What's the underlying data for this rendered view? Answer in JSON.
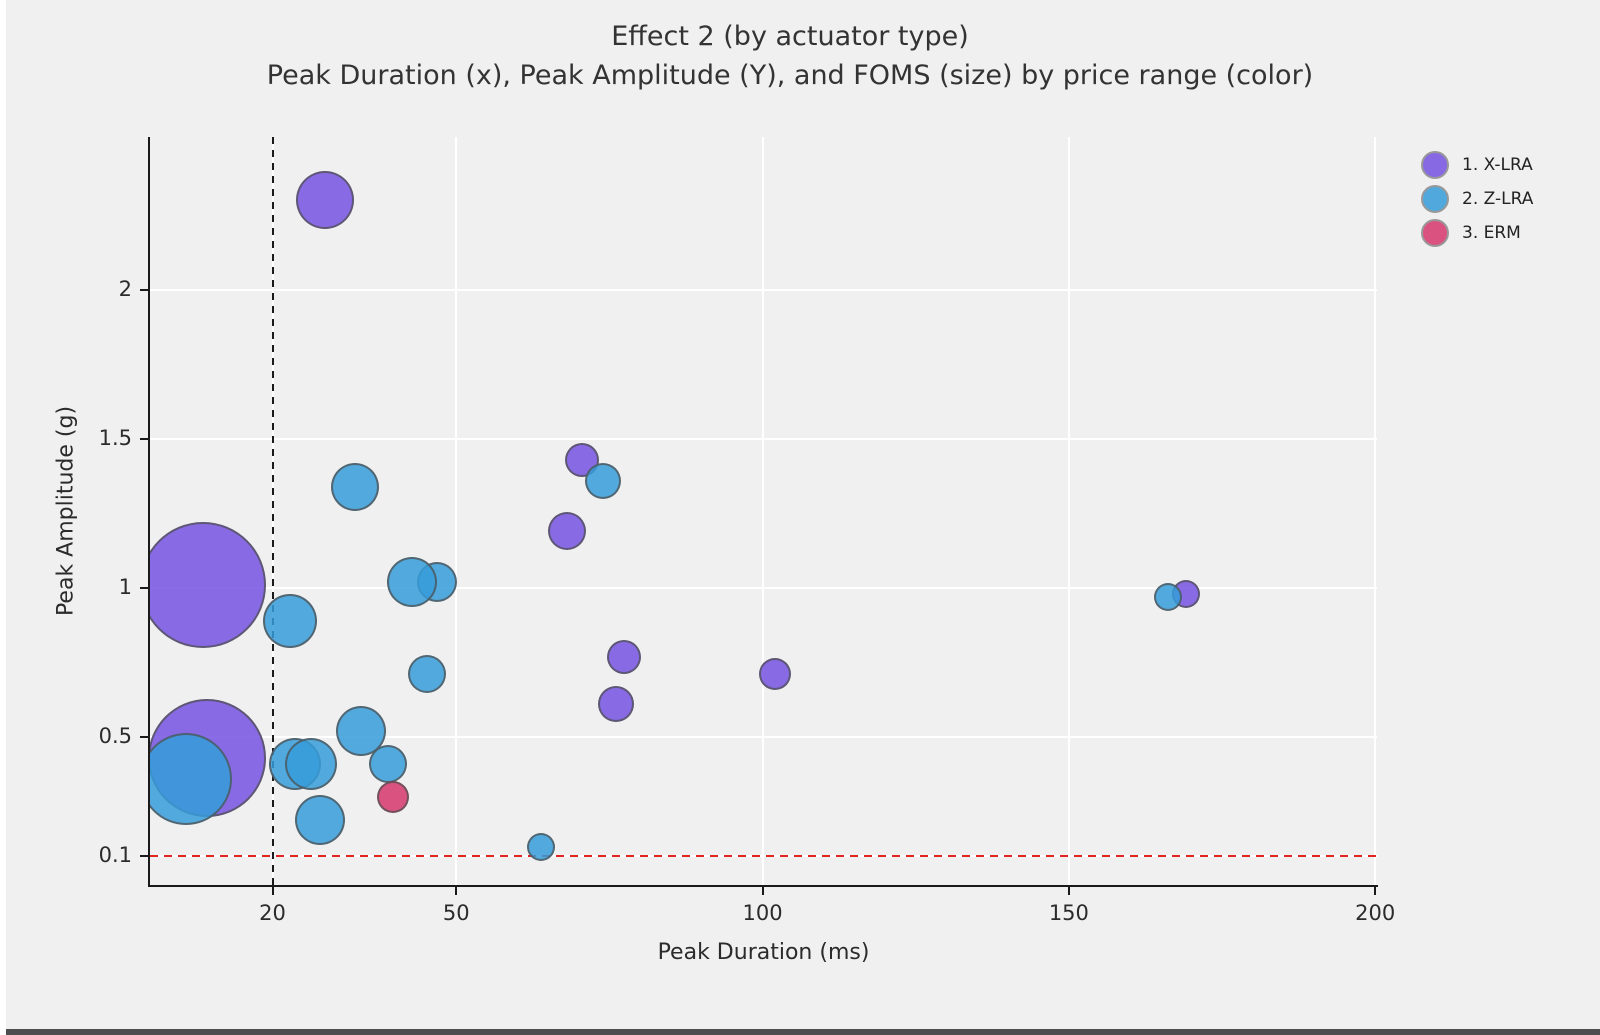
{
  "page": {
    "background": "#f0f0f0",
    "edge_left_color": "#ffffff",
    "edge_bottom_color": "#4e4e4e"
  },
  "chart_data": {
    "type": "bubble",
    "title": "Effect 2 (by actuator type)",
    "subtitle": "Peak Duration (x), Peak Amplitude (Y), and FOMS (size) by price range (color)",
    "xlabel": "Peak Duration (ms)",
    "ylabel": "Peak Amplitude (g)",
    "x_ticks": [
      20,
      50,
      100,
      150,
      200
    ],
    "y_ticks": [
      0.1,
      0.5,
      1,
      1.5,
      2
    ],
    "x_range": [
      0,
      200.3
    ],
    "y_range": [
      0,
      2.513
    ],
    "grid": true,
    "gridline_color": "#ffffff",
    "legend_position": "top-right",
    "reference_lines": {
      "vertical_x": 20,
      "vertical_style": "black-dashed",
      "horizontal_y": 0.1,
      "horizontal_style": "red-dashed"
    },
    "groups": [
      {
        "id": 1,
        "label": "1. X-LRA",
        "fill": "rgba(116,82,226,0.85)",
        "legend_color": "#8769e4"
      },
      {
        "id": 2,
        "label": "2. Z-LRA",
        "fill": "rgba(53,156,217,0.85)",
        "legend_color": "#51a8dc"
      },
      {
        "id": 3,
        "label": "3. ERM",
        "fill": "rgba(214,54,107,0.85)",
        "legend_color": "#da527f"
      }
    ],
    "points": [
      {
        "x": 8.7,
        "y": 1.01,
        "r": 63,
        "group": 1
      },
      {
        "x": 9.3,
        "y": 0.43,
        "r": 59,
        "group": 1
      },
      {
        "x": 5.9,
        "y": 0.36,
        "r": 46,
        "group": 2
      },
      {
        "x": 28.5,
        "y": 2.3,
        "r": 29,
        "group": 1
      },
      {
        "x": 22.9,
        "y": 0.89,
        "r": 27,
        "group": 2
      },
      {
        "x": 33.5,
        "y": 1.34,
        "r": 24,
        "group": 2
      },
      {
        "x": 46.9,
        "y": 1.02,
        "r": 20,
        "group": 2
      },
      {
        "x": 42.8,
        "y": 1.02,
        "r": 25,
        "group": 2
      },
      {
        "x": 45.3,
        "y": 0.71,
        "r": 19,
        "group": 2
      },
      {
        "x": 34.4,
        "y": 0.52,
        "r": 25,
        "group": 2
      },
      {
        "x": 23.7,
        "y": 0.41,
        "r": 26,
        "group": 2
      },
      {
        "x": 26.3,
        "y": 0.41,
        "r": 26,
        "group": 2
      },
      {
        "x": 27.7,
        "y": 0.22,
        "r": 25,
        "group": 2
      },
      {
        "x": 38.9,
        "y": 0.41,
        "r": 19,
        "group": 2
      },
      {
        "x": 39.6,
        "y": 0.3,
        "r": 16,
        "group": 3
      },
      {
        "x": 68.0,
        "y": 1.19,
        "r": 19,
        "group": 1
      },
      {
        "x": 70.6,
        "y": 1.43,
        "r": 17,
        "group": 1
      },
      {
        "x": 74.0,
        "y": 1.36,
        "r": 18,
        "group": 2
      },
      {
        "x": 76.0,
        "y": 0.61,
        "r": 18,
        "group": 1
      },
      {
        "x": 77.3,
        "y": 0.77,
        "r": 17,
        "group": 1
      },
      {
        "x": 102.1,
        "y": 0.71,
        "r": 16,
        "group": 1
      },
      {
        "x": 63.9,
        "y": 0.13,
        "r": 14,
        "group": 2
      },
      {
        "x": 169.1,
        "y": 0.98,
        "r": 14,
        "group": 1
      },
      {
        "x": 166.2,
        "y": 0.97,
        "r": 14,
        "group": 2
      }
    ]
  }
}
